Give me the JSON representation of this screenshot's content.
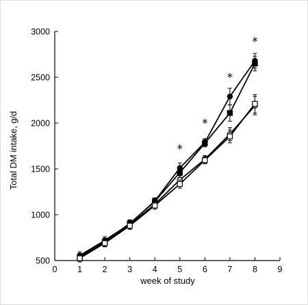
{
  "chart_data": {
    "type": "line",
    "title": "",
    "xlabel": "week of study",
    "ylabel": "Total DM intake, g/d",
    "xlim": [
      0,
      9
    ],
    "ylim": [
      500,
      3000
    ],
    "x_ticks": [
      0,
      1,
      2,
      3,
      4,
      5,
      6,
      7,
      8,
      9
    ],
    "y_ticks": [
      500,
      1000,
      1500,
      2000,
      2500,
      3000
    ],
    "grid": false,
    "legend": "none",
    "x": [
      1,
      2,
      3,
      4,
      5,
      6,
      7,
      8
    ],
    "series": [
      {
        "marker": "filled-circle",
        "values": [
          555,
          720,
          900,
          1150,
          1510,
          1790,
          2290,
          2680
        ],
        "errors": [
          40,
          40,
          40,
          35,
          55,
          40,
          90,
          80
        ]
      },
      {
        "marker": "filled-square",
        "values": [
          540,
          705,
          905,
          1145,
          1460,
          1780,
          2110,
          2650
        ],
        "errors": [
          40,
          40,
          40,
          35,
          55,
          40,
          90,
          80
        ]
      },
      {
        "marker": "open-circle",
        "values": [
          535,
          695,
          890,
          1115,
          1380,
          1605,
          1880,
          2190
        ],
        "errors": [
          40,
          40,
          40,
          40,
          45,
          40,
          70,
          100
        ]
      },
      {
        "marker": "open-square",
        "values": [
          525,
          690,
          880,
          1100,
          1335,
          1595,
          1855,
          2210
        ],
        "errors": [
          40,
          40,
          40,
          40,
          45,
          40,
          70,
          100
        ]
      }
    ],
    "annotations": [
      {
        "text": "*",
        "x": 5,
        "y": 1720
      },
      {
        "text": "*",
        "x": 6,
        "y": 2000
      },
      {
        "text": "*",
        "x": 7,
        "y": 2500
      },
      {
        "text": "*",
        "x": 8,
        "y": 2890
      }
    ],
    "colors": {
      "line": "#000000",
      "axis": "#000000",
      "background": "#ffffff"
    }
  }
}
